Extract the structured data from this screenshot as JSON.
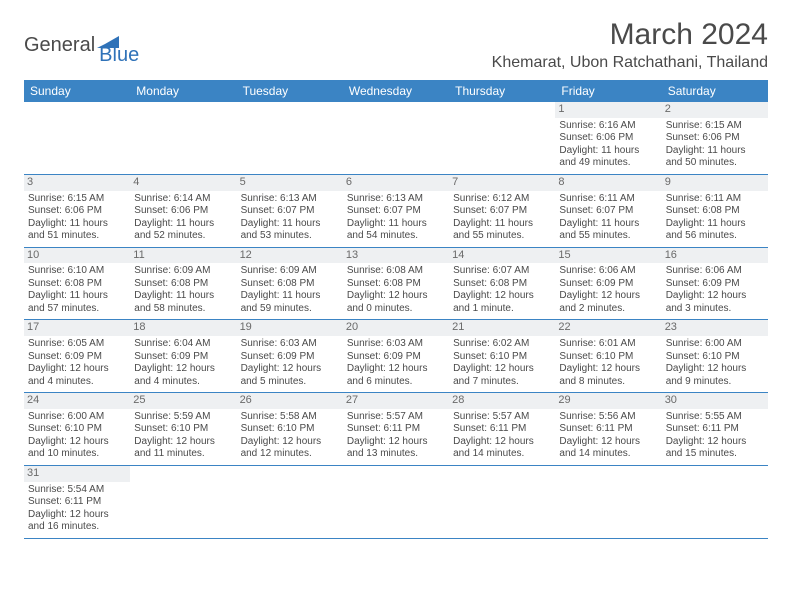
{
  "brand": {
    "general": "General",
    "blue": "Blue"
  },
  "title": "March 2024",
  "location": "Khemarat, Ubon Ratchathani, Thailand",
  "colors": {
    "header_bg": "#3b84c4",
    "header_text": "#ffffff",
    "row_divider": "#3b84c4",
    "body_text": "#4a4a4a",
    "daynum_bg": "#eef0f2",
    "logo_accent": "#2f72b8"
  },
  "weekdays": [
    "Sunday",
    "Monday",
    "Tuesday",
    "Wednesday",
    "Thursday",
    "Friday",
    "Saturday"
  ],
  "weeks": [
    [
      null,
      null,
      null,
      null,
      null,
      {
        "day": "1",
        "sunrise": "Sunrise: 6:16 AM",
        "sunset": "Sunset: 6:06 PM",
        "daylight": "Daylight: 11 hours and 49 minutes."
      },
      {
        "day": "2",
        "sunrise": "Sunrise: 6:15 AM",
        "sunset": "Sunset: 6:06 PM",
        "daylight": "Daylight: 11 hours and 50 minutes."
      }
    ],
    [
      {
        "day": "3",
        "sunrise": "Sunrise: 6:15 AM",
        "sunset": "Sunset: 6:06 PM",
        "daylight": "Daylight: 11 hours and 51 minutes."
      },
      {
        "day": "4",
        "sunrise": "Sunrise: 6:14 AM",
        "sunset": "Sunset: 6:06 PM",
        "daylight": "Daylight: 11 hours and 52 minutes."
      },
      {
        "day": "5",
        "sunrise": "Sunrise: 6:13 AM",
        "sunset": "Sunset: 6:07 PM",
        "daylight": "Daylight: 11 hours and 53 minutes."
      },
      {
        "day": "6",
        "sunrise": "Sunrise: 6:13 AM",
        "sunset": "Sunset: 6:07 PM",
        "daylight": "Daylight: 11 hours and 54 minutes."
      },
      {
        "day": "7",
        "sunrise": "Sunrise: 6:12 AM",
        "sunset": "Sunset: 6:07 PM",
        "daylight": "Daylight: 11 hours and 55 minutes."
      },
      {
        "day": "8",
        "sunrise": "Sunrise: 6:11 AM",
        "sunset": "Sunset: 6:07 PM",
        "daylight": "Daylight: 11 hours and 55 minutes."
      },
      {
        "day": "9",
        "sunrise": "Sunrise: 6:11 AM",
        "sunset": "Sunset: 6:08 PM",
        "daylight": "Daylight: 11 hours and 56 minutes."
      }
    ],
    [
      {
        "day": "10",
        "sunrise": "Sunrise: 6:10 AM",
        "sunset": "Sunset: 6:08 PM",
        "daylight": "Daylight: 11 hours and 57 minutes."
      },
      {
        "day": "11",
        "sunrise": "Sunrise: 6:09 AM",
        "sunset": "Sunset: 6:08 PM",
        "daylight": "Daylight: 11 hours and 58 minutes."
      },
      {
        "day": "12",
        "sunrise": "Sunrise: 6:09 AM",
        "sunset": "Sunset: 6:08 PM",
        "daylight": "Daylight: 11 hours and 59 minutes."
      },
      {
        "day": "13",
        "sunrise": "Sunrise: 6:08 AM",
        "sunset": "Sunset: 6:08 PM",
        "daylight": "Daylight: 12 hours and 0 minutes."
      },
      {
        "day": "14",
        "sunrise": "Sunrise: 6:07 AM",
        "sunset": "Sunset: 6:08 PM",
        "daylight": "Daylight: 12 hours and 1 minute."
      },
      {
        "day": "15",
        "sunrise": "Sunrise: 6:06 AM",
        "sunset": "Sunset: 6:09 PM",
        "daylight": "Daylight: 12 hours and 2 minutes."
      },
      {
        "day": "16",
        "sunrise": "Sunrise: 6:06 AM",
        "sunset": "Sunset: 6:09 PM",
        "daylight": "Daylight: 12 hours and 3 minutes."
      }
    ],
    [
      {
        "day": "17",
        "sunrise": "Sunrise: 6:05 AM",
        "sunset": "Sunset: 6:09 PM",
        "daylight": "Daylight: 12 hours and 4 minutes."
      },
      {
        "day": "18",
        "sunrise": "Sunrise: 6:04 AM",
        "sunset": "Sunset: 6:09 PM",
        "daylight": "Daylight: 12 hours and 4 minutes."
      },
      {
        "day": "19",
        "sunrise": "Sunrise: 6:03 AM",
        "sunset": "Sunset: 6:09 PM",
        "daylight": "Daylight: 12 hours and 5 minutes."
      },
      {
        "day": "20",
        "sunrise": "Sunrise: 6:03 AM",
        "sunset": "Sunset: 6:09 PM",
        "daylight": "Daylight: 12 hours and 6 minutes."
      },
      {
        "day": "21",
        "sunrise": "Sunrise: 6:02 AM",
        "sunset": "Sunset: 6:10 PM",
        "daylight": "Daylight: 12 hours and 7 minutes."
      },
      {
        "day": "22",
        "sunrise": "Sunrise: 6:01 AM",
        "sunset": "Sunset: 6:10 PM",
        "daylight": "Daylight: 12 hours and 8 minutes."
      },
      {
        "day": "23",
        "sunrise": "Sunrise: 6:00 AM",
        "sunset": "Sunset: 6:10 PM",
        "daylight": "Daylight: 12 hours and 9 minutes."
      }
    ],
    [
      {
        "day": "24",
        "sunrise": "Sunrise: 6:00 AM",
        "sunset": "Sunset: 6:10 PM",
        "daylight": "Daylight: 12 hours and 10 minutes."
      },
      {
        "day": "25",
        "sunrise": "Sunrise: 5:59 AM",
        "sunset": "Sunset: 6:10 PM",
        "daylight": "Daylight: 12 hours and 11 minutes."
      },
      {
        "day": "26",
        "sunrise": "Sunrise: 5:58 AM",
        "sunset": "Sunset: 6:10 PM",
        "daylight": "Daylight: 12 hours and 12 minutes."
      },
      {
        "day": "27",
        "sunrise": "Sunrise: 5:57 AM",
        "sunset": "Sunset: 6:11 PM",
        "daylight": "Daylight: 12 hours and 13 minutes."
      },
      {
        "day": "28",
        "sunrise": "Sunrise: 5:57 AM",
        "sunset": "Sunset: 6:11 PM",
        "daylight": "Daylight: 12 hours and 14 minutes."
      },
      {
        "day": "29",
        "sunrise": "Sunrise: 5:56 AM",
        "sunset": "Sunset: 6:11 PM",
        "daylight": "Daylight: 12 hours and 14 minutes."
      },
      {
        "day": "30",
        "sunrise": "Sunrise: 5:55 AM",
        "sunset": "Sunset: 6:11 PM",
        "daylight": "Daylight: 12 hours and 15 minutes."
      }
    ],
    [
      {
        "day": "31",
        "sunrise": "Sunrise: 5:54 AM",
        "sunset": "Sunset: 6:11 PM",
        "daylight": "Daylight: 12 hours and 16 minutes."
      },
      null,
      null,
      null,
      null,
      null,
      null
    ]
  ]
}
